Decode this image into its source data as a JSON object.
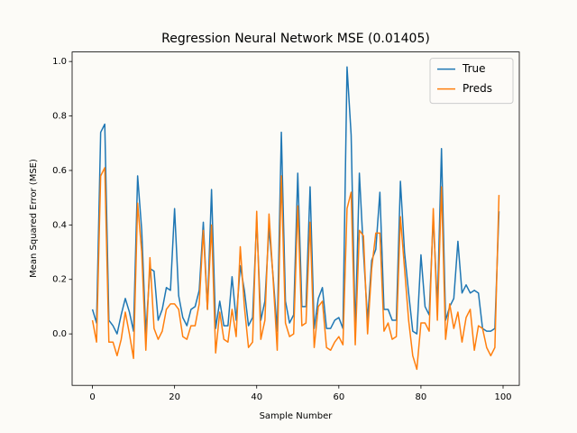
{
  "chart_data": {
    "type": "line",
    "title": "Regression Neural Network MSE (0.01405)",
    "xlabel": "Sample Number",
    "ylabel": "Mean Squared Error (MSE)",
    "x": [
      0,
      1,
      2,
      3,
      4,
      5,
      6,
      7,
      8,
      9,
      10,
      11,
      12,
      13,
      14,
      15,
      16,
      17,
      18,
      19,
      20,
      21,
      22,
      23,
      24,
      25,
      26,
      27,
      28,
      29,
      30,
      31,
      32,
      33,
      34,
      35,
      36,
      37,
      38,
      39,
      40,
      41,
      42,
      43,
      44,
      45,
      46,
      47,
      48,
      49,
      50,
      51,
      52,
      53,
      54,
      55,
      56,
      57,
      58,
      59,
      60,
      61,
      62,
      63,
      64,
      65,
      66,
      67,
      68,
      69,
      70,
      71,
      72,
      73,
      74,
      75,
      76,
      77,
      78,
      79,
      80,
      81,
      82,
      83,
      84,
      85,
      86,
      87,
      88,
      89,
      90,
      91,
      92,
      93,
      94,
      95,
      96,
      97,
      98,
      99
    ],
    "series": [
      {
        "name": "True",
        "color": "#1f77b4",
        "values": [
          0.09,
          0.04,
          0.74,
          0.77,
          0.05,
          0.03,
          0.0,
          0.07,
          0.13,
          0.08,
          0.01,
          0.58,
          0.38,
          0.0,
          0.24,
          0.23,
          0.05,
          0.09,
          0.17,
          0.16,
          0.46,
          0.14,
          0.06,
          0.03,
          0.09,
          0.1,
          0.16,
          0.41,
          0.09,
          0.53,
          0.02,
          0.12,
          0.03,
          0.03,
          0.21,
          0.05,
          0.25,
          0.16,
          0.03,
          0.06,
          0.42,
          0.05,
          0.12,
          0.39,
          0.21,
          0.01,
          0.74,
          0.12,
          0.04,
          0.07,
          0.59,
          0.1,
          0.1,
          0.54,
          0.02,
          0.13,
          0.17,
          0.02,
          0.02,
          0.05,
          0.06,
          0.02,
          0.98,
          0.73,
          0.0,
          0.59,
          0.3,
          0.05,
          0.27,
          0.31,
          0.52,
          0.09,
          0.09,
          0.05,
          0.05,
          0.56,
          0.3,
          0.15,
          0.01,
          0.0,
          0.29,
          0.1,
          0.07,
          0.43,
          0.1,
          0.68,
          0.05,
          0.1,
          0.13,
          0.34,
          0.15,
          0.18,
          0.15,
          0.16,
          0.15,
          0.02,
          0.01,
          0.01,
          0.02,
          0.45
        ]
      },
      {
        "name": "Preds",
        "color": "#ff7f0e",
        "values": [
          0.05,
          -0.03,
          0.58,
          0.61,
          -0.03,
          -0.03,
          -0.08,
          -0.02,
          0.08,
          0.0,
          -0.09,
          0.48,
          0.3,
          -0.06,
          0.28,
          0.02,
          -0.02,
          0.01,
          0.09,
          0.11,
          0.11,
          0.09,
          -0.01,
          -0.02,
          0.03,
          0.03,
          0.11,
          0.38,
          0.09,
          0.4,
          -0.07,
          0.08,
          -0.02,
          -0.03,
          0.09,
          -0.01,
          0.32,
          0.1,
          -0.05,
          -0.03,
          0.45,
          -0.02,
          0.05,
          0.44,
          0.2,
          -0.06,
          0.58,
          0.04,
          -0.01,
          0.0,
          0.47,
          0.03,
          0.04,
          0.41,
          -0.05,
          0.1,
          0.12,
          -0.05,
          -0.06,
          -0.03,
          -0.01,
          -0.04,
          0.46,
          0.52,
          -0.04,
          0.38,
          0.36,
          0.0,
          0.24,
          0.37,
          0.37,
          0.01,
          0.04,
          -0.02,
          -0.01,
          0.43,
          0.24,
          0.05,
          -0.08,
          -0.13,
          0.04,
          0.04,
          0.01,
          0.46,
          0.05,
          0.54,
          -0.02,
          0.11,
          0.02,
          0.08,
          -0.03,
          0.06,
          0.09,
          -0.06,
          0.03,
          0.02,
          -0.05,
          -0.08,
          -0.05,
          0.51
        ]
      }
    ],
    "xlim": [
      -4.95,
      103.95
    ],
    "ylim": [
      -0.189,
      1.035
    ],
    "xticks": [
      0,
      20,
      40,
      60,
      80,
      100
    ],
    "yticks": [
      {
        "value": 0,
        "label": "0.0"
      },
      0.2,
      0.4,
      0.6,
      0.8,
      {
        "value": 1,
        "label": "1.0"
      }
    ],
    "grid": false,
    "legend": "upper right"
  }
}
